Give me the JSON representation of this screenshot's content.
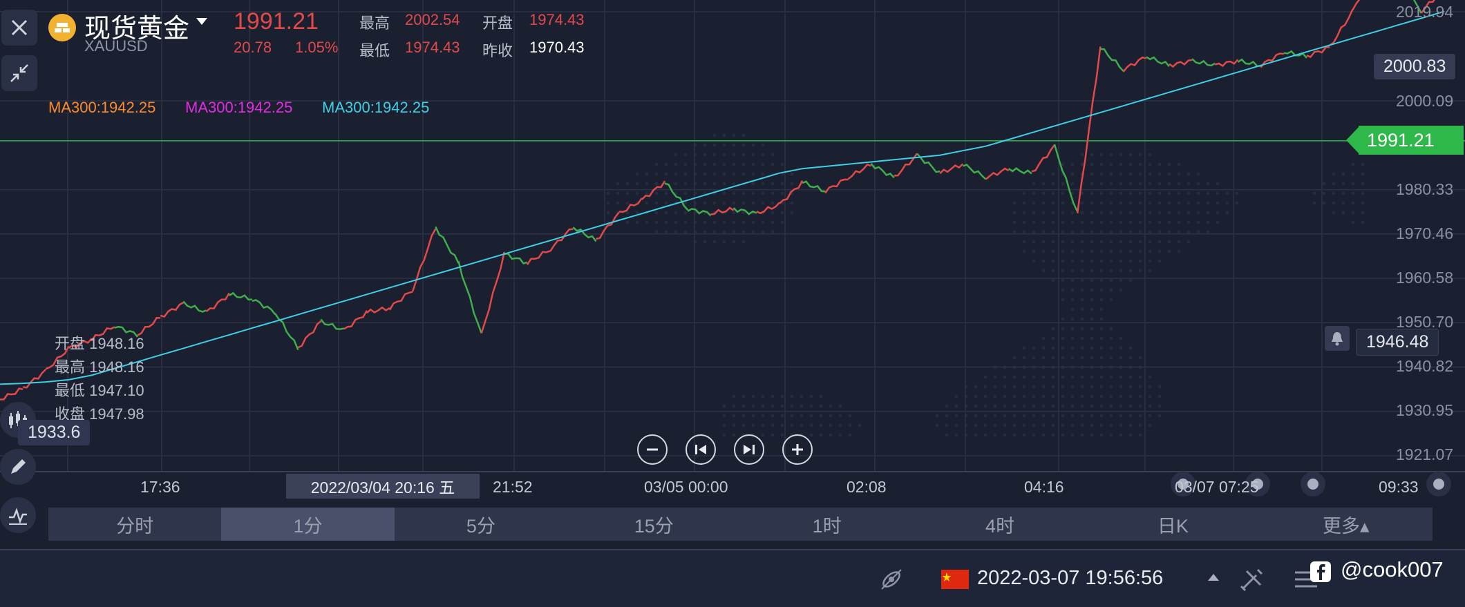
{
  "header": {
    "title": "现货黄金",
    "symbol": "XAUUSD",
    "price": "1991.21",
    "change": "20.78",
    "change_pct": "1.05%",
    "high_label": "最高",
    "high": "2002.54",
    "open_label": "开盘",
    "open": "1974.43",
    "low_label": "最低",
    "low": "1974.43",
    "prev_close_label": "昨收",
    "prev_close": "1970.43"
  },
  "ma_labels": [
    "MA300:1942.25",
    "MA300:1942.25",
    "MA300:1942.25"
  ],
  "ohlc_panel": {
    "open": "开盘 1948.16",
    "high": "最高 1948.16",
    "low": "最低 1947.10",
    "close": "收盘 1947.98"
  },
  "left_price_tag": "1933.6",
  "price_axis": [
    "2019.94",
    "2000.09",
    "1980.33",
    "1970.46",
    "1960.58",
    "1950.70",
    "1940.82",
    "1930.95",
    "1921.07"
  ],
  "price_tags": {
    "current": "1991.21",
    "top": "2000.83",
    "alert": "1946.48"
  },
  "time_axis": [
    "17:36",
    "21:52",
    "03/05 00:00",
    "02:08",
    "04:16",
    "03/07 07:25",
    "09:33"
  ],
  "crosshair_time": "2022/03/04 20:16 五",
  "timeframes": [
    "分时",
    "1分",
    "5分",
    "15分",
    "1时",
    "4时",
    "日K",
    "更多▴"
  ],
  "active_timeframe_index": 1,
  "footer": {
    "datetime": "2022-03-07 19:56:56",
    "watermark": "@cook007"
  },
  "colors": {
    "up": "#e24a4a",
    "down": "#3fae4c",
    "ma_orange": "#ff8a2b",
    "ma_magenta": "#e22de0",
    "ma_cyan": "#3fd0e6",
    "current_price_bg": "#2fb84a"
  },
  "icons": [
    "close-icon",
    "gold-coin-icon",
    "caret-down-icon",
    "shrink-icon",
    "candlestick-icon",
    "pencil-icon",
    "indicator-icon",
    "zoom-out-icon",
    "prev-icon",
    "next-icon",
    "zoom-in-icon",
    "bell-icon",
    "satellite-icon",
    "flag-cn-icon",
    "caret-up-icon",
    "tools-icon",
    "menu-icon",
    "facebook-icon"
  ],
  "chart_data": {
    "type": "line",
    "series": [
      {
        "values": [
          1933.6,
          1936,
          1940,
          1945,
          1947,
          1950,
          1948,
          1952,
          1955,
          1953,
          1957,
          1956,
          1953,
          1945,
          1951,
          1949,
          1953,
          1954,
          1958,
          1972,
          1964,
          1948,
          1966,
          1964,
          1967,
          1972,
          1969,
          1975,
          1978,
          1982,
          1976,
          1975,
          1976,
          1975,
          1977,
          1982,
          1980,
          1983,
          1986,
          1983,
          1988,
          1984,
          1986,
          1983,
          1985,
          1984,
          1990,
          1975,
          2012,
          2007,
          2010,
          2008,
          2009,
          2008,
          2009,
          2008,
          2011,
          2010,
          2012,
          2020,
          2030,
          2027,
          2020,
          2025
        ]
      },
      {
        "name": "MA300",
        "values": [
          1937,
          1937.2,
          1937.5,
          1938,
          1939,
          1940.5,
          1942,
          1943.5,
          1945,
          1946.5,
          1948,
          1949.5,
          1951,
          1952.5,
          1954,
          1955.5,
          1957,
          1958.5,
          1960,
          1961.5,
          1963,
          1964.5,
          1966,
          1967.5,
          1969,
          1970.5,
          1972,
          1973.5,
          1975,
          1976.5,
          1978,
          1979.5,
          1981,
          1982.5,
          1984,
          1985,
          1985.5,
          1986,
          1986.5,
          1987,
          1987.5,
          1988,
          1989,
          1990,
          1991.5,
          1993,
          1994.5,
          1996,
          1997.5,
          1999,
          2000.5,
          2002,
          2003.5,
          2005,
          2006.5,
          2008,
          2009.5,
          2011,
          2012.5,
          2014,
          2015.5,
          2017,
          2018.5,
          2020
        ]
      }
    ],
    "ylim": [
      1921.07,
      2019.94
    ],
    "grid": true
  }
}
